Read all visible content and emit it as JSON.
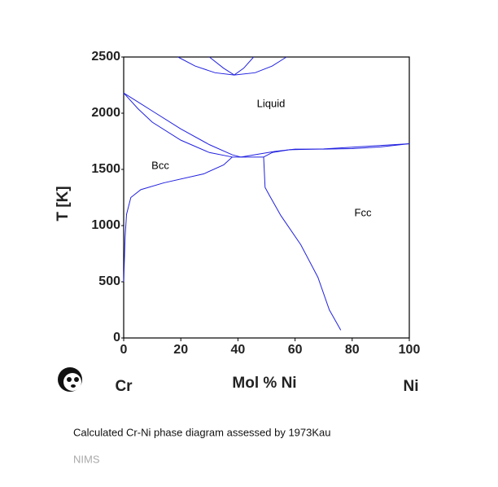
{
  "chart_data": {
    "type": "line",
    "ylabel": "T [K]",
    "xlabel": "Mol % Ni",
    "left_label": "Cr",
    "right_label": "Ni",
    "caption": "Calculated Cr-Ni phase diagram assessed by 1973Kau",
    "source": "NIMS",
    "annotations": [
      "Liquid",
      "Bcc",
      "Fcc"
    ],
    "xlim": [
      0,
      100
    ],
    "xticks": [
      0,
      20,
      40,
      60,
      80,
      100
    ],
    "ylim": [
      0,
      2500
    ],
    "yticks": [
      0,
      500,
      1000,
      1500,
      2000,
      2500
    ],
    "series": [
      {
        "color": "#2020e0",
        "x": [
          0,
          10,
          20,
          30,
          38,
          41
        ],
        "values": [
          2180,
          2020,
          1860,
          1720,
          1630,
          1610
        ]
      },
      {
        "color": "#2020e0",
        "x": [
          0,
          5,
          10,
          20,
          30,
          38
        ],
        "values": [
          2180,
          2040,
          1920,
          1760,
          1650,
          1610
        ]
      },
      {
        "color": "#2020e0",
        "x": [
          38,
          49
        ],
        "values": [
          1610,
          1610
        ]
      },
      {
        "color": "#2020e0",
        "x": [
          41,
          53,
          60,
          70,
          80,
          90,
          100
        ],
        "values": [
          1610,
          1660,
          1680,
          1680,
          1685,
          1700,
          1728
        ]
      },
      {
        "color": "#2020e0",
        "x": [
          49,
          52,
          58,
          70,
          100
        ],
        "values": [
          1610,
          1650,
          1675,
          1682,
          1728
        ]
      },
      {
        "color": "#2020e0",
        "x": [
          0,
          0.5,
          1,
          2.5,
          6,
          14,
          28,
          35,
          38
        ],
        "values": [
          500,
          900,
          1100,
          1250,
          1320,
          1380,
          1460,
          1540,
          1610
        ]
      },
      {
        "color": "#2020e0",
        "x": [
          49,
          49.5,
          51,
          55,
          62,
          68,
          72,
          76
        ],
        "values": [
          1610,
          1340,
          1270,
          1090,
          830,
          540,
          250,
          70
        ]
      },
      {
        "color": "#2020e0",
        "x": [
          19,
          25,
          32,
          38.7,
          46,
          52,
          57
        ],
        "values": [
          2500,
          2420,
          2360,
          2340,
          2360,
          2420,
          2500
        ]
      },
      {
        "color": "#2020e0",
        "x": [
          30,
          35,
          38.7,
          42,
          45.5
        ],
        "values": [
          2500,
          2400,
          2340,
          2400,
          2500
        ]
      }
    ]
  }
}
